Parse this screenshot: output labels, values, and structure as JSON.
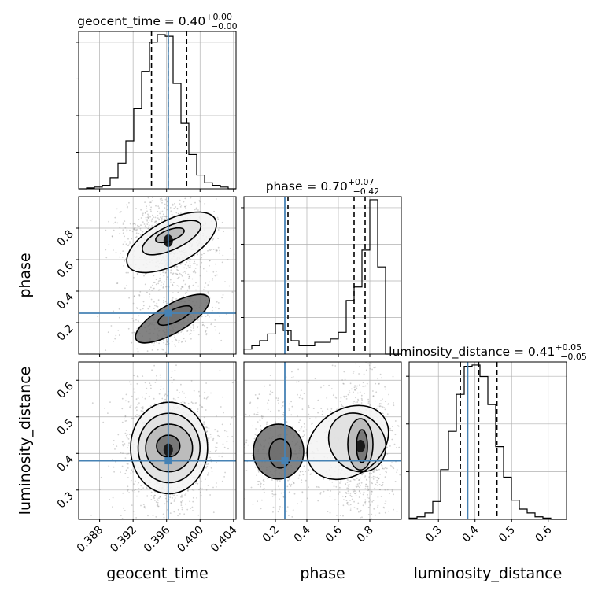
{
  "chart_data": {
    "type": "corner",
    "parameters": [
      "geocent_time",
      "phase",
      "luminosity_distance"
    ],
    "truths": {
      "geocent_time": 0.3962,
      "phase": 0.26,
      "luminosity_distance": 0.38
    },
    "truth_color": "#4682b4",
    "panels": [
      {
        "kind": "hist",
        "param": "geocent_time",
        "title": {
          "main": "geocent_time = 0.40",
          "sup": "+0.00",
          "sub": "−0.00"
        },
        "xlim": [
          0.3855,
          0.4043
        ],
        "bins_x": [
          0.3855,
          0.38644,
          0.38738,
          0.38832,
          0.38926,
          0.3902,
          0.39114,
          0.39208,
          0.39302,
          0.39396,
          0.3949,
          0.39584,
          0.39678,
          0.39772,
          0.39866,
          0.3996,
          0.40054,
          0.40148,
          0.40242,
          0.40336,
          0.4043
        ],
        "counts": [
          0,
          1,
          2,
          4,
          13,
          30,
          56,
          94,
          137,
          171,
          180,
          178,
          123,
          77,
          40,
          16,
          7,
          4,
          2,
          0
        ],
        "quantiles": [
          0.3942,
          0.3962,
          0.3984
        ],
        "truth": 0.3962,
        "ticks": [
          0.388,
          0.392,
          0.396,
          0.4,
          0.404
        ],
        "ytick_count": 4
      },
      {
        "kind": "hist",
        "param": "phase",
        "title": {
          "main": "phase = 0.70",
          "sup": "+0.07",
          "sub": "−0.42"
        },
        "xlim": [
          0.0,
          1.0
        ],
        "bins_x": [
          0.0,
          0.05,
          0.1,
          0.15,
          0.2,
          0.25,
          0.3,
          0.35,
          0.4,
          0.45,
          0.5,
          0.55,
          0.6,
          0.65,
          0.7,
          0.75,
          0.8,
          0.85,
          0.9,
          0.95,
          1.0
        ],
        "counts": [
          3,
          5,
          8,
          12,
          18,
          14,
          8,
          5,
          5,
          7,
          7,
          9,
          13,
          32,
          40,
          62,
          92,
          52,
          0,
          0
        ],
        "quantiles": [
          0.28,
          0.7,
          0.77
        ],
        "truth": 0.26,
        "ticks": [
          0.2,
          0.4,
          0.6,
          0.8
        ],
        "ytick_count": 4
      },
      {
        "kind": "hist",
        "param": "luminosity_distance",
        "title": {
          "main": "luminosity_distance = 0.41",
          "sup": "+0.05",
          "sub": "−0.05"
        },
        "xlim": [
          0.22,
          0.65
        ],
        "bins_x": [
          0.22,
          0.2415,
          0.263,
          0.2845,
          0.306,
          0.3275,
          0.349,
          0.3705,
          0.392,
          0.4135,
          0.435,
          0.4565,
          0.478,
          0.4995,
          0.521,
          0.5425,
          0.564,
          0.5855,
          0.607,
          0.6285,
          0.65
        ],
        "counts": [
          1,
          2,
          5,
          14,
          39,
          69,
          98,
          120,
          121,
          112,
          90,
          57,
          33,
          15,
          8,
          5,
          2,
          1,
          0,
          0
        ],
        "quantiles": [
          0.36,
          0.41,
          0.46
        ],
        "truth": 0.38,
        "ticks": [
          0.3,
          0.4,
          0.5,
          0.6
        ],
        "ytick_count": 3
      },
      {
        "kind": "2d",
        "x": "geocent_time",
        "y": "phase",
        "xlim": [
          0.3855,
          0.4043
        ],
        "ylim": [
          0.0,
          1.0
        ],
        "truth": [
          0.3962,
          0.26
        ],
        "yticks": [
          0.2,
          0.4,
          0.6,
          0.8
        ],
        "modes": [
          {
            "cx": 0.3962,
            "cy": 0.72,
            "sx": 0.0016,
            "sy": 0.09,
            "rot": -35,
            "w": 0.7
          },
          {
            "cx": 0.3966,
            "cy": 0.22,
            "sx": 0.0017,
            "sy": 0.06,
            "rot": -20,
            "w": 0.3
          }
        ],
        "contours": [
          {
            "cx": 0.3966,
            "cy": 0.71,
            "rx": 0.0059,
            "ry": 0.14,
            "rot": -28
          },
          {
            "cx": 0.3966,
            "cy": 0.74,
            "rx": 0.0038,
            "ry": 0.075,
            "rot": -25
          },
          {
            "cx": 0.3964,
            "cy": 0.755,
            "rx": 0.0018,
            "ry": 0.035,
            "rot": -20
          },
          {
            "cx": 0.3967,
            "cy": 0.225,
            "rx": 0.005,
            "ry": 0.09,
            "rot": -30
          },
          {
            "cx": 0.397,
            "cy": 0.245,
            "rx": 0.0022,
            "ry": 0.04,
            "rot": -25
          }
        ]
      },
      {
        "kind": "2d",
        "x": "geocent_time",
        "y": "luminosity_distance",
        "xlim": [
          0.3855,
          0.4043
        ],
        "ylim": [
          0.22,
          0.65
        ],
        "truth": [
          0.3962,
          0.38
        ],
        "yticks": [
          0.3,
          0.4,
          0.5,
          0.6
        ],
        "modes": [
          {
            "cx": 0.3962,
            "cy": 0.41,
            "sx": 0.0016,
            "sy": 0.05,
            "rot": 0,
            "w": 1.0
          }
        ],
        "contours": [
          {
            "cx": 0.3963,
            "cy": 0.415,
            "rx": 0.0046,
            "ry": 0.125,
            "rot": 0
          },
          {
            "cx": 0.3963,
            "cy": 0.415,
            "rx": 0.0037,
            "ry": 0.095,
            "rot": 0
          },
          {
            "cx": 0.3963,
            "cy": 0.415,
            "rx": 0.0028,
            "ry": 0.065,
            "rot": 0
          },
          {
            "cx": 0.3962,
            "cy": 0.42,
            "rx": 0.0014,
            "ry": 0.03,
            "rot": 0
          }
        ]
      },
      {
        "kind": "2d",
        "x": "phase",
        "y": "luminosity_distance",
        "xlim": [
          0.0,
          1.0
        ],
        "ylim": [
          0.22,
          0.65
        ],
        "truth": [
          0.26,
          0.38
        ],
        "modes": [
          {
            "cx": 0.74,
            "cy": 0.42,
            "sx": 0.07,
            "sy": 0.055,
            "rot": 0,
            "w": 0.7
          },
          {
            "cx": 0.22,
            "cy": 0.41,
            "sx": 0.07,
            "sy": 0.05,
            "rot": 0,
            "w": 0.3
          }
        ],
        "contours": [
          {
            "cx": 0.66,
            "cy": 0.43,
            "rx": 0.28,
            "ry": 0.09,
            "rot": -35
          },
          {
            "cx": 0.72,
            "cy": 0.43,
            "rx": 0.17,
            "ry": 0.085,
            "rot": -40
          },
          {
            "cx": 0.74,
            "cy": 0.425,
            "rx": 0.08,
            "ry": 0.07,
            "rot": 0
          },
          {
            "cx": 0.75,
            "cy": 0.42,
            "rx": 0.035,
            "ry": 0.045,
            "rot": 0
          },
          {
            "cx": 0.22,
            "cy": 0.405,
            "rx": 0.16,
            "ry": 0.075,
            "rot": 0
          },
          {
            "cx": 0.23,
            "cy": 0.4,
            "rx": 0.07,
            "ry": 0.04,
            "rot": 0
          }
        ]
      }
    ],
    "axis_labels": {
      "x": [
        "geocent_time",
        "phase",
        "luminosity_distance"
      ],
      "y": [
        "phase",
        "luminosity_distance"
      ]
    },
    "grid": true
  }
}
